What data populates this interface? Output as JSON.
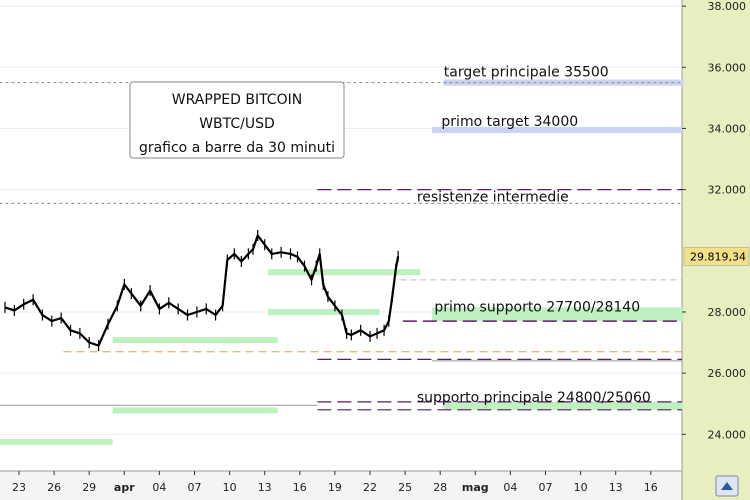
{
  "chart_data": {
    "type": "ohlc",
    "title_lines": [
      "WRAPPED BITCOIN",
      "WBTC/USD",
      "grafico a barre da 30 minuti"
    ],
    "ylim": [
      22800,
      38200
    ],
    "y_ticks": [
      {
        "value": 24000,
        "label": "24.000"
      },
      {
        "value": 26000,
        "label": "26.000"
      },
      {
        "value": 28000,
        "label": "28.000"
      },
      {
        "value": 32000,
        "label": "32.000"
      },
      {
        "value": 34000,
        "label": "34.000"
      },
      {
        "value": 36000,
        "label": "36.000"
      },
      {
        "value": 38000,
        "label": "38.000"
      }
    ],
    "x_ticks": [
      {
        "label": "23",
        "bold": false
      },
      {
        "label": "26",
        "bold": false
      },
      {
        "label": "29",
        "bold": false
      },
      {
        "label": "apr",
        "bold": true
      },
      {
        "label": "04",
        "bold": false
      },
      {
        "label": "07",
        "bold": false
      },
      {
        "label": "10",
        "bold": false
      },
      {
        "label": "13",
        "bold": false
      },
      {
        "label": "16",
        "bold": false
      },
      {
        "label": "19",
        "bold": false
      },
      {
        "label": "22",
        "bold": false
      },
      {
        "label": "25",
        "bold": false
      },
      {
        "label": "28",
        "bold": false
      },
      {
        "label": "mag",
        "bold": true
      },
      {
        "label": "04",
        "bold": false
      },
      {
        "label": "07",
        "bold": false
      },
      {
        "label": "10",
        "bold": false
      },
      {
        "label": "13",
        "bold": false
      },
      {
        "label": "16",
        "bold": false
      }
    ],
    "last_price": {
      "value": 29819.34,
      "label": "29.819,34"
    },
    "price_path": [
      [
        0.0,
        28150
      ],
      [
        0.8,
        28050
      ],
      [
        1.6,
        28250
      ],
      [
        2.4,
        28400
      ],
      [
        3.2,
        27900
      ],
      [
        4.0,
        27700
      ],
      [
        4.8,
        27800
      ],
      [
        5.6,
        27400
      ],
      [
        6.4,
        27300
      ],
      [
        7.2,
        27000
      ],
      [
        8.0,
        26900
      ],
      [
        8.8,
        27600
      ],
      [
        9.6,
        28200
      ],
      [
        10.2,
        28900
      ],
      [
        10.8,
        28600
      ],
      [
        11.6,
        28200
      ],
      [
        12.4,
        28700
      ],
      [
        13.2,
        28100
      ],
      [
        14.0,
        28300
      ],
      [
        14.8,
        28100
      ],
      [
        15.6,
        27900
      ],
      [
        16.4,
        28000
      ],
      [
        17.2,
        28100
      ],
      [
        18.0,
        27900
      ],
      [
        18.6,
        28200
      ],
      [
        19.0,
        29700
      ],
      [
        19.6,
        29900
      ],
      [
        20.2,
        29650
      ],
      [
        20.8,
        29900
      ],
      [
        21.2,
        30050
      ],
      [
        21.6,
        30500
      ],
      [
        22.2,
        30200
      ],
      [
        22.8,
        29900
      ],
      [
        23.6,
        29950
      ],
      [
        24.4,
        29900
      ],
      [
        25.0,
        29800
      ],
      [
        25.6,
        29500
      ],
      [
        26.2,
        29050
      ],
      [
        26.6,
        29500
      ],
      [
        26.9,
        29900
      ],
      [
        27.2,
        28900
      ],
      [
        27.6,
        28500
      ],
      [
        28.2,
        28200
      ],
      [
        28.8,
        27900
      ],
      [
        29.2,
        27300
      ],
      [
        29.6,
        27250
      ],
      [
        30.4,
        27400
      ],
      [
        31.2,
        27200
      ],
      [
        31.8,
        27300
      ],
      [
        32.4,
        27400
      ],
      [
        32.8,
        27700
      ],
      [
        33.1,
        28500
      ],
      [
        33.4,
        29400
      ],
      [
        33.6,
        29819
      ]
    ],
    "levels": [
      {
        "value": 35500,
        "label": "target principale 35500",
        "style": "dashed-gray"
      },
      {
        "value": 33950,
        "label": "primo target 34000",
        "style": "none"
      },
      {
        "value": 32000,
        "label": "",
        "style": "long-dash-purple"
      },
      {
        "value": 31550,
        "label": "resistenze intermedie",
        "style": "dashed-gray"
      },
      {
        "value": 28150,
        "label": "primo supporto 27700/28140",
        "style": "none"
      },
      {
        "value": 27700,
        "label": "",
        "style": "long-dash-purple"
      },
      {
        "value": 26450,
        "label": "",
        "style": "long-dash-purple"
      },
      {
        "value": 25060,
        "label": "supporto principale 24800/25060",
        "style": "long-dash-purple"
      },
      {
        "value": 24800,
        "label": "",
        "style": "long-dash-purple"
      }
    ],
    "colors": {
      "plot_bg": "#ffffff",
      "axis_bg": "#e8eec0",
      "price": "#000000",
      "support_zone": "#bff0bf",
      "target_zone": "#c8d4f0",
      "purple_dash": "#5a1a6a",
      "gray_dash": "#8a8a8a",
      "orange_dash": "#e0a040",
      "price_flag": "#f2e08a"
    }
  },
  "footer": {
    "scroll_icon": "scroll-right-icon"
  }
}
